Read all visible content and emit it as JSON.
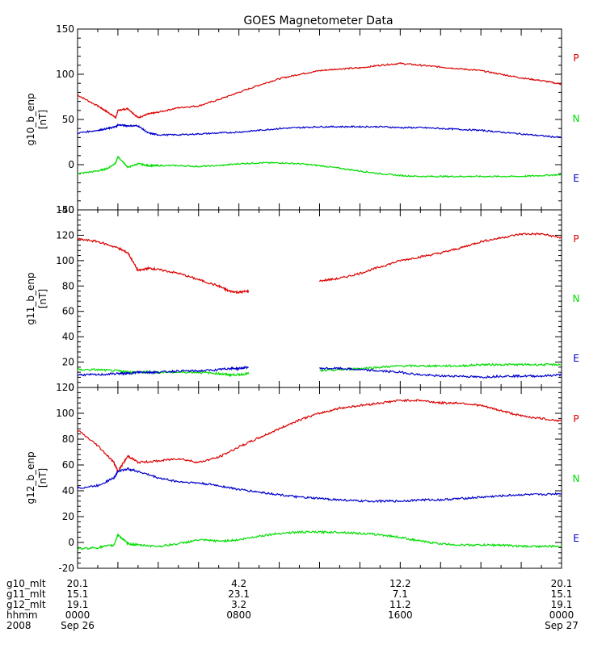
{
  "title": "GOES Magnetometer Data",
  "colors": {
    "P": "#dd0000",
    "N": "#00dd00",
    "E": "#0000cc",
    "axis": "#000000"
  },
  "chart_data": [
    {
      "type": "line",
      "ylabel": "g10_b_enp",
      "unit": "[nT]",
      "ylim": [
        -50,
        150
      ],
      "yticks": [
        -50,
        0,
        50,
        100,
        150
      ],
      "legend": [
        "P",
        "N",
        "E"
      ],
      "x_hours": [
        0,
        1,
        1.5,
        1.9,
        2,
        2.5,
        3,
        3.5,
        4,
        5,
        6,
        7,
        8,
        9,
        10,
        11,
        12,
        13,
        14,
        15,
        16,
        17,
        18,
        19,
        20,
        21,
        22,
        23,
        24
      ],
      "series": [
        {
          "name": "P",
          "color": "#dd0000",
          "values": [
            77,
            65,
            58,
            52,
            60,
            62,
            52,
            56,
            58,
            63,
            65,
            72,
            80,
            88,
            95,
            100,
            104,
            106,
            107,
            110,
            112,
            110,
            108,
            106,
            104,
            100,
            96,
            93,
            89
          ]
        },
        {
          "name": "N",
          "color": "#00dd00",
          "values": [
            -10,
            -7,
            -4,
            2,
            9,
            -3,
            1,
            -1,
            -1,
            -1,
            -2,
            -1,
            1,
            2,
            2,
            1,
            -1,
            -4,
            -7,
            -10,
            -12,
            -13,
            -13,
            -13,
            -13,
            -13,
            -13,
            -12,
            -11
          ]
        },
        {
          "name": "E",
          "color": "#0000cc",
          "values": [
            35,
            38,
            40,
            42,
            44,
            43,
            43,
            35,
            33,
            33,
            34,
            35,
            36,
            38,
            40,
            41,
            42,
            42,
            42,
            42,
            41,
            41,
            40,
            39,
            38,
            36,
            34,
            32,
            30
          ]
        }
      ]
    },
    {
      "type": "line",
      "ylabel": "g11_b_enp",
      "unit": "[nT]",
      "ylim": [
        0,
        140
      ],
      "yticks": [
        0,
        20,
        40,
        60,
        80,
        100,
        120,
        140
      ],
      "legend": [
        "P",
        "N",
        "E"
      ],
      "x_hours": [
        0,
        1,
        2,
        2.5,
        3,
        3.5,
        4,
        5,
        6,
        7,
        7.5,
        8,
        8.5,
        9,
        10,
        11,
        12,
        13,
        14,
        15,
        16,
        17,
        18,
        19,
        20,
        21,
        22,
        23,
        24
      ],
      "series": [
        {
          "name": "P",
          "color": "#dd0000",
          "values": [
            117,
            115,
            110,
            106,
            92,
            94,
            93,
            90,
            85,
            80,
            76,
            75,
            76,
            null,
            null,
            null,
            84,
            86,
            90,
            95,
            100,
            103,
            106,
            110,
            115,
            118,
            121,
            121,
            118
          ]
        },
        {
          "name": "N",
          "color": "#00dd00",
          "values": [
            14,
            14,
            13,
            12,
            12,
            12,
            12,
            12,
            12,
            11,
            10,
            10,
            11,
            null,
            null,
            null,
            13,
            14,
            15,
            16,
            17,
            17,
            17,
            17,
            18,
            18,
            18,
            18,
            18
          ]
        },
        {
          "name": "E",
          "color": "#0000cc",
          "values": [
            10,
            10,
            11,
            11,
            12,
            12,
            12,
            13,
            13,
            14,
            15,
            15,
            16,
            null,
            null,
            null,
            15,
            15,
            14,
            13,
            12,
            10,
            9,
            9,
            8,
            9,
            9,
            9,
            10
          ]
        }
      ]
    },
    {
      "type": "line",
      "ylabel": "g12_b_enp",
      "unit": "[nT]",
      "ylim": [
        -20,
        120
      ],
      "yticks": [
        -20,
        0,
        20,
        40,
        60,
        80,
        100,
        120
      ],
      "legend": [
        "P",
        "N",
        "E"
      ],
      "x_hours": [
        0,
        1,
        1.8,
        2,
        2.5,
        3,
        4,
        5,
        6,
        7,
        8,
        9,
        10,
        11,
        12,
        13,
        14,
        15,
        16,
        17,
        18,
        19,
        20,
        21,
        22,
        23,
        24
      ],
      "series": [
        {
          "name": "P",
          "color": "#dd0000",
          "values": [
            87,
            75,
            62,
            55,
            67,
            62,
            63,
            65,
            62,
            66,
            74,
            81,
            88,
            95,
            100,
            104,
            106,
            108,
            110,
            110,
            108,
            108,
            106,
            102,
            98,
            96,
            94
          ]
        },
        {
          "name": "N",
          "color": "#00dd00",
          "values": [
            -5,
            -4,
            -2,
            6,
            -1,
            -2,
            -3,
            -1,
            2,
            1,
            2,
            5,
            7,
            8,
            8,
            8,
            7,
            6,
            4,
            1,
            -1,
            -2,
            -2,
            -2,
            -3,
            -3,
            -3
          ]
        },
        {
          "name": "E",
          "color": "#0000cc",
          "values": [
            42,
            44,
            50,
            55,
            57,
            55,
            50,
            47,
            46,
            44,
            41,
            39,
            37,
            35,
            34,
            33,
            32,
            32,
            32,
            33,
            33,
            34,
            35,
            36,
            37,
            37,
            38
          ]
        }
      ]
    }
  ],
  "time_axis": {
    "row_labels": [
      "g10_mlt",
      "g11_mlt",
      "g12_mlt",
      "hhmm",
      "2008"
    ],
    "columns": [
      {
        "hour": 0,
        "values": [
          "20.1",
          "15.1",
          "19.1",
          "0000",
          "Sep 26"
        ]
      },
      {
        "hour": 8,
        "values": [
          "4.2",
          "23.1",
          "3.2",
          "0800",
          ""
        ]
      },
      {
        "hour": 16,
        "values": [
          "12.2",
          "7.1",
          "11.2",
          "1600",
          ""
        ]
      },
      {
        "hour": 24,
        "values": [
          "20.1",
          "15.1",
          "19.1",
          "0000",
          "Sep 27"
        ]
      }
    ]
  }
}
